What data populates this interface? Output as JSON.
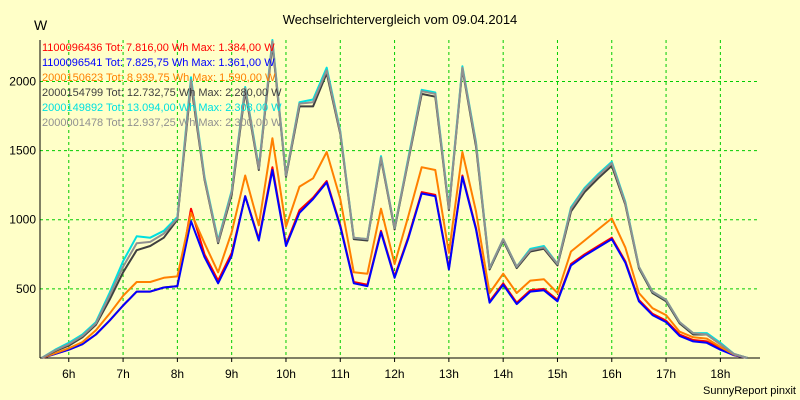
{
  "chart_data": {
    "type": "line",
    "title": "Wechselrichtervergleich vom 09.04.2014",
    "ylabel": "W",
    "xlabel": "",
    "footer": "SunnyReport pinxit",
    "grid": true,
    "x_unit": "hour",
    "xlim": [
      5.47,
      18.73
    ],
    "ylim": [
      0,
      2300
    ],
    "x_ticks": [
      6,
      7,
      8,
      9,
      10,
      11,
      12,
      13,
      14,
      15,
      16,
      17,
      18
    ],
    "x_tick_labels": [
      "6h",
      "7h",
      "8h",
      "9h",
      "10h",
      "11h",
      "12h",
      "13h",
      "14h",
      "15h",
      "16h",
      "17h",
      "18h"
    ],
    "y_ticks": [
      500,
      1000,
      1500,
      2000
    ],
    "y_tick_labels": [
      "500",
      "1000",
      "1500",
      "2000"
    ],
    "colors": {
      "background": "#FFFFC8",
      "plot_background": "#FFFFC8",
      "grid": "#00CC00"
    },
    "series": [
      {
        "name": "1100096436",
        "label": "1100096436 Tot: 7.816,00 Wh Max: 1.384,00 W",
        "color": "#FF0000",
        "x": [
          5.5,
          5.75,
          6,
          6.25,
          6.5,
          6.75,
          7,
          7.25,
          7.5,
          7.75,
          8,
          8.25,
          8.5,
          8.75,
          9,
          9.25,
          9.5,
          9.75,
          10,
          10.25,
          10.5,
          10.75,
          11,
          11.25,
          11.5,
          11.75,
          12,
          12.25,
          12.5,
          12.75,
          13,
          13.25,
          13.5,
          13.75,
          14,
          14.25,
          14.5,
          14.75,
          15,
          15.25,
          15.5,
          15.75,
          16,
          16.25,
          16.5,
          16.75,
          17,
          17.25,
          17.5,
          17.75,
          18,
          18.25,
          18.5
        ],
        "values": [
          0,
          30,
          60,
          100,
          170,
          270,
          380,
          480,
          480,
          510,
          520,
          1080,
          750,
          560,
          760,
          1170,
          860,
          1380,
          820,
          1070,
          1160,
          1280,
          960,
          550,
          530,
          920,
          590,
          870,
          1200,
          1180,
          650,
          1320,
          940,
          410,
          540,
          400,
          490,
          500,
          420,
          680,
          750,
          810,
          870,
          700,
          420,
          320,
          270,
          170,
          130,
          120,
          70,
          20,
          0
        ]
      },
      {
        "name": "1100096541",
        "label": "1100096541 Tot: 7.825,75 Wh Max: 1.361,00 W",
        "color": "#0000FF",
        "x": [
          5.5,
          5.75,
          6,
          6.25,
          6.5,
          6.75,
          7,
          7.25,
          7.5,
          7.75,
          8,
          8.25,
          8.5,
          8.75,
          9,
          9.25,
          9.5,
          9.75,
          10,
          10.25,
          10.5,
          10.75,
          11,
          11.25,
          11.5,
          11.75,
          12,
          12.25,
          12.5,
          12.75,
          13,
          13.25,
          13.5,
          13.75,
          14,
          14.25,
          14.5,
          14.75,
          15,
          15.25,
          15.5,
          15.75,
          16,
          16.25,
          16.5,
          16.75,
          17,
          17.25,
          17.5,
          17.75,
          18,
          18.25,
          18.5
        ],
        "values": [
          0,
          30,
          60,
          100,
          170,
          270,
          380,
          480,
          480,
          510,
          520,
          990,
          730,
          540,
          740,
          1170,
          850,
          1360,
          810,
          1050,
          1150,
          1270,
          950,
          540,
          520,
          910,
          580,
          860,
          1190,
          1170,
          640,
          1310,
          930,
          400,
          530,
          390,
          480,
          490,
          410,
          670,
          740,
          800,
          860,
          690,
          410,
          310,
          260,
          160,
          120,
          110,
          60,
          20,
          0
        ]
      },
      {
        "name": "2000150623",
        "label": "2000150623 Tot: 8.939,75 Wh Max: 1.590,00 W",
        "color": "#FF8000",
        "x": [
          5.5,
          5.75,
          6,
          6.25,
          6.5,
          6.75,
          7,
          7.25,
          7.5,
          7.75,
          8,
          8.25,
          8.5,
          8.75,
          9,
          9.25,
          9.5,
          9.75,
          10,
          10.25,
          10.5,
          10.75,
          11,
          11.25,
          11.5,
          11.75,
          12,
          12.25,
          12.5,
          12.75,
          13,
          13.25,
          13.5,
          13.75,
          14,
          14.25,
          14.5,
          14.75,
          15,
          15.25,
          15.5,
          15.75,
          16,
          16.25,
          16.5,
          16.75,
          17,
          17.25,
          17.5,
          17.75,
          18,
          18.25,
          18.5
        ],
        "values": [
          0,
          35,
          70,
          115,
          200,
          320,
          450,
          550,
          550,
          580,
          590,
          1050,
          830,
          620,
          910,
          1320,
          960,
          1590,
          950,
          1240,
          1300,
          1490,
          1150,
          620,
          610,
          1080,
          680,
          1020,
          1380,
          1360,
          760,
          1490,
          1060,
          470,
          610,
          470,
          560,
          570,
          470,
          770,
          850,
          930,
          1010,
          800,
          470,
          360,
          310,
          190,
          150,
          140,
          80,
          25,
          0
        ]
      },
      {
        "name": "2000154799",
        "label": "2000154799 Tot: 12.732,75 Wh Max: 2.280,00 W",
        "color": "#404040",
        "x": [
          5.5,
          5.75,
          6,
          6.25,
          6.5,
          6.75,
          7,
          7.25,
          7.5,
          7.75,
          8,
          8.25,
          8.5,
          8.75,
          9,
          9.25,
          9.5,
          9.75,
          10,
          10.25,
          10.5,
          10.75,
          11,
          11.25,
          11.5,
          11.75,
          12,
          12.25,
          12.5,
          12.75,
          13,
          13.25,
          13.5,
          13.75,
          14,
          14.25,
          14.5,
          14.75,
          15,
          15.25,
          15.5,
          15.75,
          16,
          16.25,
          16.5,
          16.75,
          17,
          17.25,
          17.5,
          17.75,
          18,
          18.25,
          18.5
        ],
        "values": [
          0,
          50,
          90,
          150,
          240,
          420,
          620,
          780,
          810,
          870,
          1000,
          1980,
          1290,
          830,
          1180,
          1930,
          1360,
          2270,
          1310,
          1820,
          1820,
          2060,
          1620,
          860,
          850,
          1440,
          930,
          1420,
          1910,
          1890,
          1070,
          2090,
          1530,
          640,
          850,
          650,
          770,
          790,
          670,
          1060,
          1200,
          1300,
          1390,
          1110,
          650,
          470,
          410,
          250,
          170,
          170,
          100,
          30,
          0
        ]
      },
      {
        "name": "2000149892",
        "label": "2000149892 Tot: 13.094,00 Wh Max: 2.308,00 W",
        "color": "#00E0E0",
        "x": [
          5.5,
          5.75,
          6,
          6.25,
          6.5,
          6.75,
          7,
          7.25,
          7.5,
          7.75,
          8,
          8.25,
          8.5,
          8.75,
          9,
          9.25,
          9.5,
          9.75,
          10,
          10.25,
          10.5,
          10.75,
          11,
          11.25,
          11.5,
          11.75,
          12,
          12.25,
          12.5,
          12.75,
          13,
          13.25,
          13.5,
          13.75,
          14,
          14.25,
          14.5,
          14.75,
          15,
          15.25,
          15.5,
          15.75,
          16,
          16.25,
          16.5,
          16.75,
          17,
          17.25,
          17.5,
          17.75,
          18,
          18.25,
          18.5
        ],
        "values": [
          0,
          60,
          110,
          170,
          260,
          470,
          700,
          880,
          870,
          920,
          1020,
          2030,
          1310,
          850,
          1210,
          1960,
          1380,
          2300,
          1320,
          1850,
          1870,
          2100,
          1640,
          870,
          860,
          1460,
          940,
          1440,
          1940,
          1920,
          1090,
          2110,
          1560,
          650,
          860,
          660,
          790,
          810,
          680,
          1090,
          1230,
          1330,
          1420,
          1130,
          660,
          480,
          420,
          260,
          180,
          180,
          110,
          30,
          0
        ]
      },
      {
        "name": "2000001478",
        "label": "2000001478 Tot: 12.937,25 Wh Max: 2.300,00 W",
        "color": "#909090",
        "x": [
          5.5,
          5.75,
          6,
          6.25,
          6.5,
          6.75,
          7,
          7.25,
          7.5,
          7.75,
          8,
          8.25,
          8.5,
          8.75,
          9,
          9.25,
          9.5,
          9.75,
          10,
          10.25,
          10.5,
          10.75,
          11,
          11.25,
          11.5,
          11.75,
          12,
          12.25,
          12.5,
          12.75,
          13,
          13.25,
          13.5,
          13.75,
          14,
          14.25,
          14.5,
          14.75,
          15,
          15.25,
          15.5,
          15.75,
          16,
          16.25,
          16.5,
          16.75,
          17,
          17.25,
          17.5,
          17.75,
          18,
          18.25,
          18.5
        ],
        "values": [
          0,
          55,
          100,
          160,
          250,
          450,
          660,
          830,
          840,
          900,
          1010,
          2010,
          1300,
          840,
          1200,
          1950,
          1370,
          2290,
          1320,
          1840,
          1850,
          2080,
          1630,
          870,
          860,
          1450,
          940,
          1430,
          1930,
          1910,
          1080,
          2100,
          1550,
          650,
          860,
          660,
          780,
          800,
          680,
          1080,
          1220,
          1320,
          1410,
          1120,
          660,
          480,
          420,
          260,
          180,
          170,
          100,
          30,
          0
        ]
      }
    ]
  }
}
